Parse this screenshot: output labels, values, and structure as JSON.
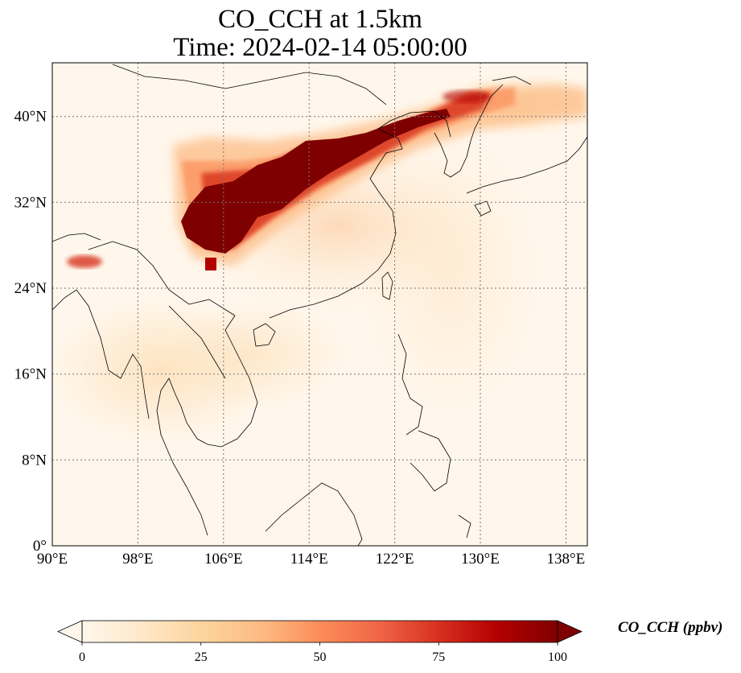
{
  "title": {
    "line1": "CO_CCH at 1.5km",
    "line2": "Time: 2024-02-14 05:00:00"
  },
  "map": {
    "lon_range": [
      90,
      140
    ],
    "lat_range": [
      0,
      45
    ],
    "gridlines": true,
    "lon_ticks": [
      "90°E",
      "98°E",
      "106°E",
      "114°E",
      "122°E",
      "130°E",
      "138°E"
    ],
    "lon_tick_values": [
      90,
      98,
      106,
      114,
      122,
      130,
      138
    ],
    "lat_ticks": [
      "0°",
      "8°N",
      "16°N",
      "24°N",
      "32°N",
      "40°N"
    ],
    "lat_tick_values": [
      0,
      8,
      16,
      24,
      32,
      40
    ],
    "colormap": "OrRd",
    "colors": [
      "#fff7ec",
      "#fee8c8",
      "#fdd49e",
      "#fdbb84",
      "#fc8d59",
      "#ef6548",
      "#d7301f",
      "#b30000",
      "#7f0000"
    ]
  },
  "colorbar": {
    "title": "CO_CCH (ppbv)",
    "ticks": [
      "0",
      "25",
      "50",
      "75",
      "100"
    ],
    "tick_values": [
      0,
      25,
      50,
      75,
      100
    ],
    "range": [
      0,
      100
    ],
    "extend": "both"
  }
}
